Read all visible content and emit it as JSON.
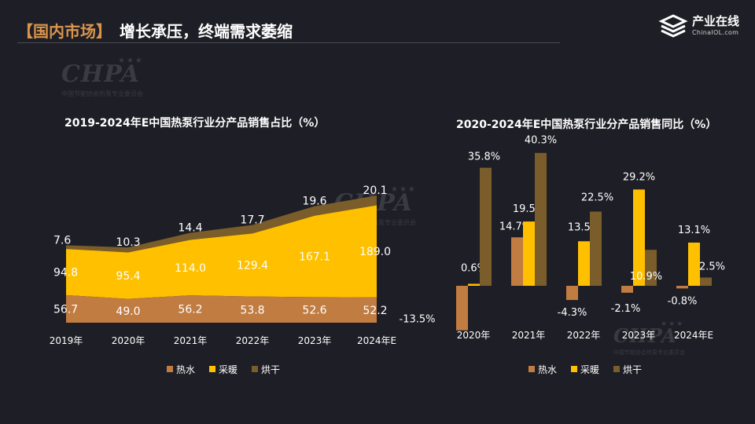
{
  "header": {
    "tag": "【国内市场】",
    "headline": "增长承压，终端需求萎缩"
  },
  "brand": {
    "name": "产业在线",
    "domain": "ChinaIOL.com"
  },
  "watermark": {
    "logo": "CHPA",
    "subtitle": "中国节能协会热泵专业委员会"
  },
  "colors": {
    "background": "#1e1e26",
    "hot_water": "#c07c41",
    "heating": "#ffc000",
    "drying": "#7a5d2a",
    "tag": "#d8954b"
  },
  "chart_data": [
    {
      "type": "area",
      "stacked": true,
      "title": "2019-2024年E中国热泵行业分产品销售占比（%）",
      "categories": [
        "2019年",
        "2020年",
        "2021年",
        "2022年",
        "2023年",
        "2024年E"
      ],
      "series": [
        {
          "name": "热水",
          "values": [
            56.7,
            49.0,
            56.2,
            53.8,
            52.6,
            52.2
          ],
          "labels": [
            "56.7",
            "49.0",
            "56.2",
            "53.8",
            "52.6",
            "52.2"
          ]
        },
        {
          "name": "采暖",
          "values": [
            94.8,
            95.4,
            114.0,
            129.4,
            167.1,
            189.0
          ],
          "labels": [
            "94.8",
            "95.4",
            "114.0",
            "129.4",
            "167.1",
            "189.0"
          ]
        },
        {
          "name": "烘干",
          "values": [
            7.6,
            10.3,
            14.4,
            17.7,
            19.6,
            20.1
          ],
          "labels": [
            "7.6",
            "10.3",
            "14.4",
            "17.7",
            "19.6",
            "20.1"
          ]
        }
      ],
      "legend": [
        "热水",
        "采暖",
        "烘干"
      ],
      "ylim": [
        0,
        280
      ]
    },
    {
      "type": "bar",
      "title": "2020-2024年E中国热泵行业分产品销售同比（%）",
      "categories": [
        "2020年",
        "2021年",
        "2022年",
        "2023年",
        "2024年E"
      ],
      "series": [
        {
          "name": "热水",
          "values": [
            -13.5,
            14.7,
            -4.3,
            -2.1,
            -0.8
          ],
          "labels": [
            "-13.5%",
            "14.7%",
            "-4.3%",
            "-2.1%",
            "-0.8%"
          ]
        },
        {
          "name": "采暖",
          "values": [
            0.6,
            19.5,
            13.5,
            29.2,
            13.1
          ],
          "labels": [
            "0.6%",
            "19.5%",
            "13.5%",
            "29.2%",
            "13.1%"
          ]
        },
        {
          "name": "烘干",
          "values": [
            35.8,
            40.3,
            22.5,
            10.9,
            2.5
          ],
          "labels": [
            "35.8%",
            "40.3%",
            "22.5%",
            "10.9%",
            "2.5%"
          ]
        }
      ],
      "legend": [
        "热水",
        "采暖",
        "烘干"
      ],
      "ylim": [
        -15,
        45
      ]
    }
  ]
}
